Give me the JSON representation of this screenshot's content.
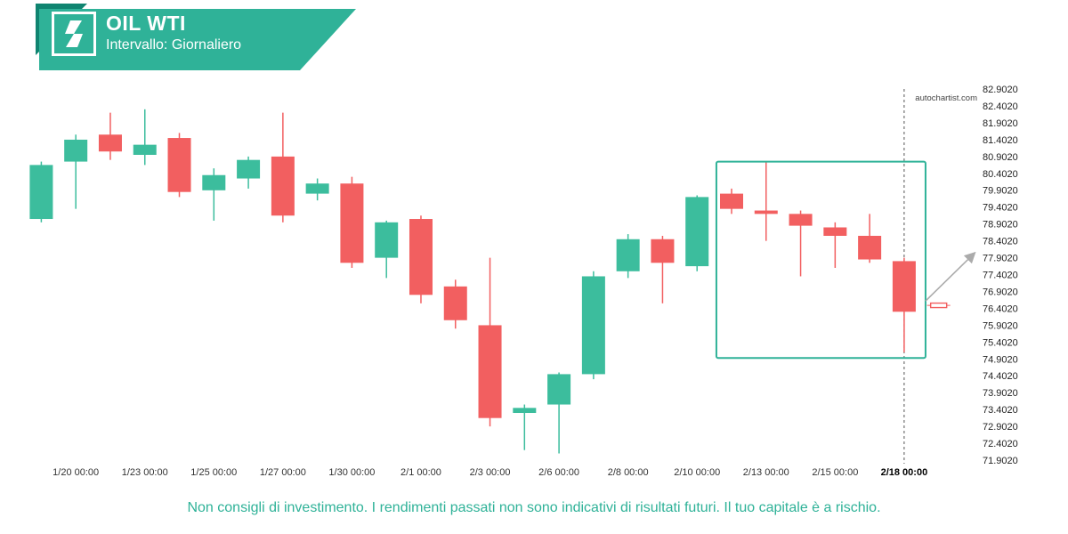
{
  "header": {
    "title": "OIL WTI",
    "subtitle": "Intervallo: Giornaliero"
  },
  "watermark": "autochartist.com",
  "footer": {
    "disclaimer": "Non consigli di investimento. I rendimenti passati non sono indicativi di risultati futuri. Il tuo capitale è a rischio."
  },
  "colors": {
    "teal": "#2FB298",
    "teal_dark": "#0F8470",
    "candle_up": "#3CBD9D",
    "candle_down": "#F25F60",
    "axis_text": "#222222",
    "x_label": "#333333",
    "x_label_current": "#000000",
    "dashed_line": "#555555",
    "arrow": "#ABABAB",
    "watermark_text": "#444444",
    "pattern_box": "#2FB298"
  },
  "chart_data": {
    "type": "candlestick",
    "title": "OIL WTI",
    "interval": "Giornaliero",
    "grid": false,
    "legend": "none",
    "ylim": [
      71.65,
      83.15
    ],
    "y_tick_labels": [
      "82.9020",
      "82.4020",
      "81.9020",
      "81.4020",
      "80.9020",
      "80.4020",
      "79.9020",
      "79.4020",
      "78.9020",
      "78.4020",
      "77.9020",
      "77.4020",
      "76.9020",
      "76.4020",
      "75.9020",
      "75.4020",
      "74.9020",
      "74.4020",
      "73.9020",
      "73.4020",
      "72.9020",
      "72.4020",
      "71.9020"
    ],
    "x_tick_labels": [
      "1/20 00:00",
      "1/23 00:00",
      "1/25 00:00",
      "1/27 00:00",
      "1/30 00:00",
      "2/1 00:00",
      "2/3 00:00",
      "2/6 00:00",
      "2/8 00:00",
      "2/10 00:00",
      "2/13 00:00",
      "2/15 00:00",
      "2/18 00:00"
    ],
    "x_tick_candle_indices": [
      1,
      3,
      5,
      7,
      9,
      11,
      13,
      15,
      17,
      19,
      21,
      23,
      25
    ],
    "candles": [
      {
        "o": 79.05,
        "h": 80.75,
        "l": 78.95,
        "c": 80.65
      },
      {
        "o": 80.75,
        "h": 81.55,
        "l": 79.35,
        "c": 81.4
      },
      {
        "o": 81.55,
        "h": 82.2,
        "l": 80.8,
        "c": 81.05
      },
      {
        "o": 80.95,
        "h": 82.3,
        "l": 80.65,
        "c": 81.25
      },
      {
        "o": 81.45,
        "h": 81.6,
        "l": 79.7,
        "c": 79.85
      },
      {
        "o": 79.9,
        "h": 80.55,
        "l": 79.0,
        "c": 80.35
      },
      {
        "o": 80.25,
        "h": 80.9,
        "l": 79.95,
        "c": 80.8
      },
      {
        "o": 80.9,
        "h": 82.2,
        "l": 78.95,
        "c": 79.15
      },
      {
        "o": 79.8,
        "h": 80.25,
        "l": 79.6,
        "c": 80.1
      },
      {
        "o": 80.1,
        "h": 80.3,
        "l": 77.6,
        "c": 77.75
      },
      {
        "o": 77.9,
        "h": 79.0,
        "l": 77.3,
        "c": 78.95
      },
      {
        "o": 79.05,
        "h": 79.15,
        "l": 76.55,
        "c": 76.8
      },
      {
        "o": 77.05,
        "h": 77.25,
        "l": 75.8,
        "c": 76.05
      },
      {
        "o": 75.9,
        "h": 77.9,
        "l": 72.9,
        "c": 73.15
      },
      {
        "o": 73.3,
        "h": 73.55,
        "l": 72.2,
        "c": 73.45
      },
      {
        "o": 73.55,
        "h": 74.5,
        "l": 72.1,
        "c": 74.45
      },
      {
        "o": 74.45,
        "h": 77.5,
        "l": 74.3,
        "c": 77.35
      },
      {
        "o": 77.5,
        "h": 78.6,
        "l": 77.3,
        "c": 78.45
      },
      {
        "o": 78.45,
        "h": 78.55,
        "l": 76.55,
        "c": 77.75
      },
      {
        "o": 77.65,
        "h": 79.75,
        "l": 77.5,
        "c": 79.7
      },
      {
        "o": 79.8,
        "h": 79.95,
        "l": 79.2,
        "c": 79.35
      },
      {
        "o": 79.3,
        "h": 80.75,
        "l": 78.4,
        "c": 79.2
      },
      {
        "o": 79.2,
        "h": 79.3,
        "l": 77.35,
        "c": 78.85
      },
      {
        "o": 78.8,
        "h": 78.95,
        "l": 77.6,
        "c": 78.55
      },
      {
        "o": 78.55,
        "h": 79.2,
        "l": 77.75,
        "c": 77.85
      },
      {
        "o": 77.8,
        "h": 77.9,
        "l": 75.1,
        "c": 76.3
      }
    ],
    "pattern_box": {
      "start_index": 19.56,
      "end_index": 25.62,
      "top_price": 80.75,
      "bottom_price": 74.93
    },
    "dashed_line_at_index": 25,
    "forecast_marker": {
      "index": 26.0,
      "price": 76.49
    },
    "trend_arrow": {
      "from_index": 25.62,
      "from_price": 76.62,
      "to_index": 27.05,
      "to_price": 78.05
    }
  }
}
